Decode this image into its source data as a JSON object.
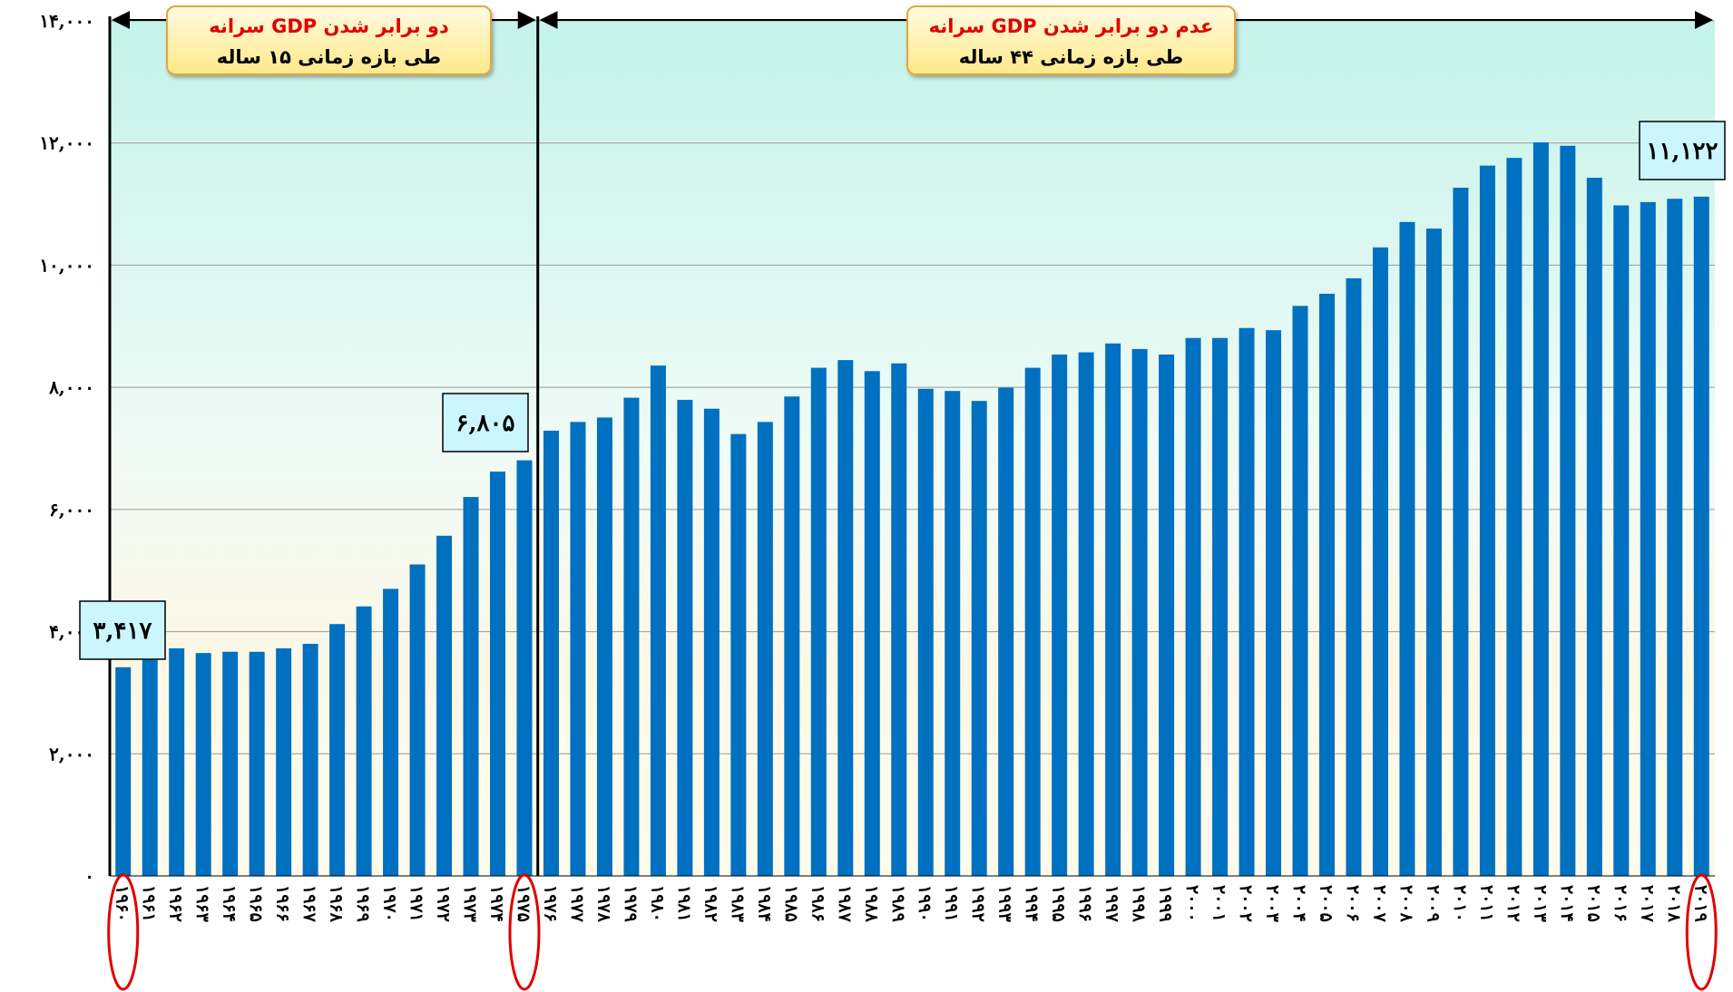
{
  "chart_data": {
    "type": "bar",
    "annotations": [
      {
        "line1": "دو برابر شدن GDP سرانه",
        "line2": "طی بازه زمانی ۱۵ ساله"
      },
      {
        "line1": "عدم دو برابر شدن GDP سرانه",
        "line2": "طی بازه زمانی  ۴۴ ساله"
      }
    ],
    "categories": [
      "۱۹۶۰",
      "۱۹۶۱",
      "۱۹۶۲",
      "۱۹۶۳",
      "۱۹۶۴",
      "۱۹۶۵",
      "۱۹۶۶",
      "۱۹۶۷",
      "۱۹۶۸",
      "۱۹۶۹",
      "۱۹۷۰",
      "۱۹۷۱",
      "۱۹۷۲",
      "۱۹۷۳",
      "۱۹۷۴",
      "۱۹۷۵",
      "۱۹۷۶",
      "۱۹۷۷",
      "۱۹۷۸",
      "۱۹۷۹",
      "۱۹۸۰",
      "۱۹۸۱",
      "۱۹۸۲",
      "۱۹۸۳",
      "۱۹۸۴",
      "۱۹۸۵",
      "۱۹۸۶",
      "۱۹۸۷",
      "۱۹۸۸",
      "۱۹۸۹",
      "۱۹۹۰",
      "۱۹۹۱",
      "۱۹۹۲",
      "۱۹۹۳",
      "۱۹۹۴",
      "۱۹۹۵",
      "۱۹۹۶",
      "۱۹۹۷",
      "۱۹۹۸",
      "۱۹۹۹",
      "۲۰۰۰",
      "۲۰۰۱",
      "۲۰۰۲",
      "۲۰۰۳",
      "۲۰۰۴",
      "۲۰۰۵",
      "۲۰۰۶",
      "۲۰۰۷",
      "۲۰۰۸",
      "۲۰۰۹",
      "۲۰۱۰",
      "۲۰۱۱",
      "۲۰۱۲",
      "۲۰۱۳",
      "۲۰۱۴",
      "۲۰۱۵",
      "۲۰۱۶",
      "۲۰۱۷",
      "۲۰۱۸",
      "۲۰۱۹"
    ],
    "values": [
      3417,
      3550,
      3726,
      3650,
      3670,
      3670,
      3726,
      3800,
      4124,
      4413,
      4700,
      5100,
      5570,
      6204,
      6620,
      6805,
      7290,
      7433,
      7506,
      7830,
      8356,
      7795,
      7650,
      7235,
      7433,
      7850,
      8320,
      8446,
      8265,
      8392,
      7976,
      7940,
      7777,
      7994,
      8320,
      8537,
      8573,
      8718,
      8627,
      8537,
      8808,
      8808,
      8971,
      8935,
      9333,
      9532,
      9785,
      10291,
      10707,
      10599,
      11268,
      11630,
      11756,
      12010,
      11955,
      11431,
      10979,
      11033,
      11087,
      11122
    ],
    "value_labels": [
      "۳,۴۱۷",
      null,
      null,
      null,
      null,
      null,
      null,
      null,
      null,
      null,
      null,
      null,
      null,
      null,
      null,
      "۶,۸۰۵",
      null,
      null,
      null,
      null,
      null,
      null,
      null,
      null,
      null,
      null,
      null,
      null,
      null,
      null,
      null,
      null,
      null,
      null,
      null,
      null,
      null,
      null,
      null,
      null,
      null,
      null,
      null,
      null,
      null,
      null,
      null,
      null,
      null,
      null,
      null,
      null,
      null,
      null,
      null,
      null,
      null,
      null,
      null,
      "۱۱,۱۲۲"
    ],
    "color": "#0070c0",
    "ylim": [
      0,
      14000
    ],
    "yticks": [
      {
        "value": 0,
        "label": "۰"
      },
      {
        "value": 2000,
        "label": "۲,۰۰۰"
      },
      {
        "value": 4000,
        "label": "۴,۰۰۰"
      },
      {
        "value": 6000,
        "label": "۶,۰۰۰"
      },
      {
        "value": 8000,
        "label": "۸,۰۰۰"
      },
      {
        "value": 10000,
        "label": "۱۰,۰۰۰"
      },
      {
        "value": 12000,
        "label": "۱۲,۰۰۰"
      },
      {
        "value": 14000,
        "label": "۱۴,۰۰۰"
      }
    ],
    "grid": true
  }
}
